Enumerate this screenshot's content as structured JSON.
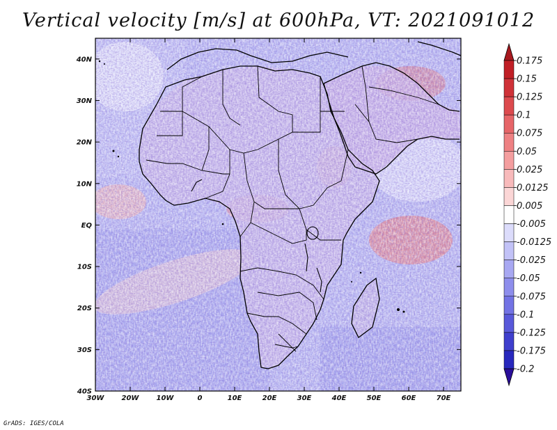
{
  "title": "Vertical velocity [m/s] at 600hPa, VT: 2021091012",
  "footer": "GrADS: IGES/COLA",
  "map": {
    "variable": "Vertical velocity",
    "units": "m/s",
    "level": "600hPa",
    "valid_time": "2021091012",
    "lon_range": [
      -30,
      75
    ],
    "lat_range": [
      -40,
      45
    ],
    "lat_ticks": [
      {
        "value": 40,
        "label": "40N"
      },
      {
        "value": 30,
        "label": "30N"
      },
      {
        "value": 20,
        "label": "20N"
      },
      {
        "value": 10,
        "label": "10N"
      },
      {
        "value": 0,
        "label": "EQ"
      },
      {
        "value": -10,
        "label": "10S"
      },
      {
        "value": -20,
        "label": "20S"
      },
      {
        "value": -30,
        "label": "30S"
      },
      {
        "value": -40,
        "label": "40S"
      }
    ],
    "lon_ticks": [
      {
        "value": -30,
        "label": "30W"
      },
      {
        "value": -20,
        "label": "20W"
      },
      {
        "value": -10,
        "label": "10W"
      },
      {
        "value": 0,
        "label": "0"
      },
      {
        "value": 10,
        "label": "10E"
      },
      {
        "value": 20,
        "label": "20E"
      },
      {
        "value": 30,
        "label": "30E"
      },
      {
        "value": 40,
        "label": "40E"
      },
      {
        "value": 50,
        "label": "50E"
      },
      {
        "value": 60,
        "label": "60E"
      },
      {
        "value": 70,
        "label": "70E"
      }
    ]
  },
  "colorbar": {
    "levels": [
      {
        "label": "0.175",
        "color": "#c01f26"
      },
      {
        "label": "0.15",
        "color": "#cf3238"
      },
      {
        "label": "0.125",
        "color": "#dc4a4e"
      },
      {
        "label": "0.1",
        "color": "#e66568"
      },
      {
        "label": "0.075",
        "color": "#ee8183"
      },
      {
        "label": "0.05",
        "color": "#f49e9f"
      },
      {
        "label": "0.025",
        "color": "#f8babb"
      },
      {
        "label": "0.0125",
        "color": "#fbd6d6"
      },
      {
        "label": "0.005",
        "color": "#ffffff"
      },
      {
        "label": "-0.005",
        "color": "#dcdcfb"
      },
      {
        "label": "-0.0125",
        "color": "#c2c2f7"
      },
      {
        "label": "-0.025",
        "color": "#a8a8f2"
      },
      {
        "label": "-0.05",
        "color": "#8e8eec"
      },
      {
        "label": "-0.075",
        "color": "#7373e4"
      },
      {
        "label": "-0.1",
        "color": "#5959da"
      },
      {
        "label": "-0.125",
        "color": "#3f3fcd"
      },
      {
        "label": "-0.175",
        "color": "#2828bd"
      },
      {
        "label": "-0.2",
        "color": "#2222a8"
      }
    ],
    "top_arrow_color": "#a8191f",
    "bottom_arrow_color": "#2a0e9a"
  }
}
